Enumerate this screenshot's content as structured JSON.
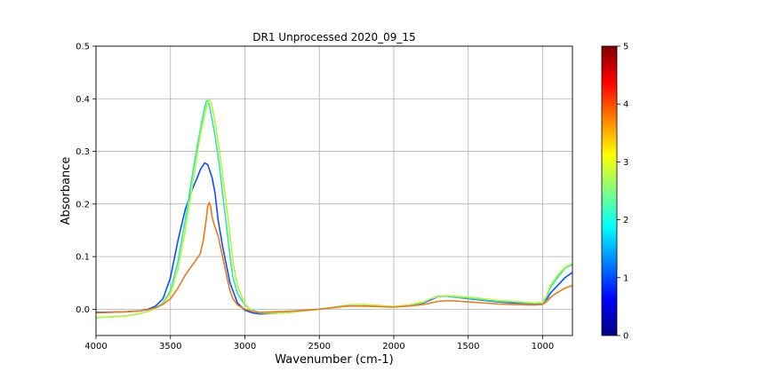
{
  "chart_data": {
    "type": "line",
    "title": "DR1 Unprocessed 2020_09_15",
    "xlabel": "Wavenumber (cm-1)",
    "ylabel": "Absorbance",
    "xlim": [
      4000,
      800
    ],
    "ylim": [
      -0.05,
      0.5
    ],
    "x_reversed": true,
    "grid": true,
    "xticks": [
      4000,
      3500,
      3000,
      2500,
      2000,
      1500,
      1000
    ],
    "xtick_labels": [
      "4000",
      "3500",
      "3000",
      "2500",
      "2000",
      "1500",
      "1000"
    ],
    "yticks": [
      0.0,
      0.1,
      0.2,
      0.3,
      0.4,
      0.5
    ],
    "ytick_labels": [
      "0.0",
      "0.1",
      "0.2",
      "0.3",
      "0.4",
      "0.5"
    ],
    "colorbar": {
      "colormap": "jet",
      "range": [
        0,
        5
      ],
      "ticks": [
        0,
        1,
        2,
        3,
        4,
        5
      ],
      "tick_labels": [
        "0",
        "1",
        "2",
        "3",
        "4",
        "5"
      ]
    },
    "series": [
      {
        "color": "#0b4fff",
        "x": [
          4000,
          3800,
          3700,
          3650,
          3600,
          3550,
          3500,
          3450,
          3400,
          3350,
          3320,
          3300,
          3270,
          3250,
          3220,
          3200,
          3180,
          3150,
          3100,
          3050,
          3000,
          2950,
          2900,
          2800,
          2700,
          2600,
          2500,
          2400,
          2350,
          2300,
          2200,
          2100,
          2000,
          1900,
          1800,
          1750,
          1700,
          1650,
          1600,
          1500,
          1400,
          1300,
          1200,
          1100,
          1050,
          1000,
          970,
          950,
          900,
          850,
          800
        ],
        "y": [
          -0.006,
          -0.005,
          -0.003,
          0.0,
          0.006,
          0.02,
          0.06,
          0.13,
          0.19,
          0.23,
          0.25,
          0.265,
          0.278,
          0.275,
          0.25,
          0.22,
          0.17,
          0.12,
          0.05,
          0.012,
          -0.002,
          -0.007,
          -0.009,
          -0.008,
          -0.006,
          -0.003,
          0.0,
          0.004,
          0.006,
          0.008,
          0.008,
          0.006,
          0.005,
          0.007,
          0.012,
          0.018,
          0.024,
          0.025,
          0.023,
          0.02,
          0.017,
          0.014,
          0.012,
          0.011,
          0.01,
          0.012,
          0.02,
          0.03,
          0.045,
          0.06,
          0.07
        ]
      },
      {
        "color": "#2ee8b0",
        "x": [
          4000,
          3800,
          3700,
          3650,
          3600,
          3550,
          3500,
          3450,
          3400,
          3350,
          3320,
          3300,
          3280,
          3260,
          3250,
          3240,
          3230,
          3200,
          3170,
          3150,
          3120,
          3100,
          3080,
          3050,
          3000,
          2950,
          2900,
          2800,
          2700,
          2600,
          2500,
          2400,
          2350,
          2300,
          2200,
          2100,
          2000,
          1900,
          1800,
          1750,
          1700,
          1650,
          1600,
          1500,
          1400,
          1300,
          1200,
          1100,
          1050,
          1000,
          970,
          950,
          900,
          850,
          800
        ],
        "y": [
          -0.016,
          -0.013,
          -0.008,
          -0.004,
          0.002,
          0.012,
          0.035,
          0.09,
          0.17,
          0.26,
          0.31,
          0.34,
          0.37,
          0.395,
          0.397,
          0.39,
          0.375,
          0.33,
          0.27,
          0.22,
          0.15,
          0.1,
          0.06,
          0.03,
          0.008,
          -0.002,
          -0.006,
          -0.007,
          -0.005,
          -0.003,
          0.0,
          0.004,
          0.006,
          0.008,
          0.009,
          0.007,
          0.005,
          0.008,
          0.013,
          0.02,
          0.025,
          0.025,
          0.023,
          0.021,
          0.018,
          0.015,
          0.014,
          0.012,
          0.011,
          0.012,
          0.025,
          0.04,
          0.06,
          0.078,
          0.085
        ]
      },
      {
        "color": "#b8f53c",
        "x": [
          4000,
          3800,
          3700,
          3650,
          3600,
          3550,
          3500,
          3450,
          3400,
          3350,
          3300,
          3270,
          3250,
          3240,
          3230,
          3220,
          3200,
          3170,
          3150,
          3120,
          3100,
          3080,
          3050,
          3000,
          2950,
          2900,
          2800,
          2700,
          2600,
          2500,
          2400,
          2350,
          2300,
          2200,
          2100,
          2000,
          1900,
          1800,
          1750,
          1700,
          1650,
          1600,
          1500,
          1400,
          1300,
          1200,
          1100,
          1050,
          1000,
          970,
          950,
          900,
          850,
          800
        ],
        "y": [
          -0.016,
          -0.013,
          -0.008,
          -0.004,
          0.002,
          0.01,
          0.03,
          0.075,
          0.15,
          0.24,
          0.33,
          0.37,
          0.392,
          0.398,
          0.395,
          0.385,
          0.355,
          0.3,
          0.255,
          0.19,
          0.14,
          0.09,
          0.045,
          0.01,
          -0.003,
          -0.007,
          -0.008,
          -0.006,
          -0.003,
          0.0,
          0.004,
          0.006,
          0.008,
          0.009,
          0.007,
          0.005,
          0.008,
          0.014,
          0.02,
          0.024,
          0.026,
          0.025,
          0.023,
          0.02,
          0.017,
          0.015,
          0.013,
          0.012,
          0.013,
          0.028,
          0.045,
          0.065,
          0.08,
          0.087
        ]
      },
      {
        "color": "#f07818",
        "x": [
          4000,
          3800,
          3700,
          3650,
          3600,
          3550,
          3500,
          3450,
          3400,
          3350,
          3300,
          3280,
          3260,
          3250,
          3240,
          3230,
          3220,
          3200,
          3180,
          3150,
          3120,
          3100,
          3080,
          3050,
          3000,
          2950,
          2900,
          2800,
          2700,
          2600,
          2500,
          2400,
          2350,
          2300,
          2200,
          2100,
          2000,
          1900,
          1800,
          1750,
          1700,
          1650,
          1600,
          1500,
          1400,
          1300,
          1200,
          1100,
          1050,
          1000,
          970,
          950,
          900,
          850,
          800
        ],
        "y": [
          -0.007,
          -0.005,
          -0.003,
          -0.001,
          0.003,
          0.009,
          0.02,
          0.04,
          0.065,
          0.085,
          0.105,
          0.13,
          0.17,
          0.195,
          0.203,
          0.195,
          0.175,
          0.155,
          0.14,
          0.1,
          0.06,
          0.035,
          0.02,
          0.008,
          0.0,
          -0.004,
          -0.006,
          -0.005,
          -0.004,
          -0.002,
          0.0,
          0.003,
          0.005,
          0.006,
          0.006,
          0.005,
          0.004,
          0.006,
          0.009,
          0.012,
          0.015,
          0.016,
          0.016,
          0.014,
          0.012,
          0.01,
          0.009,
          0.008,
          0.008,
          0.009,
          0.015,
          0.022,
          0.032,
          0.04,
          0.045
        ]
      }
    ]
  }
}
